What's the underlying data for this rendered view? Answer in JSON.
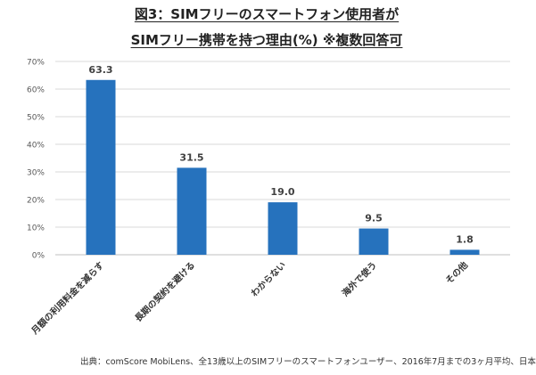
{
  "title_line1": "図3：SIMフリーのスマートフォン使用者が",
  "title_line2": "SIMフリー携帯を持つ理由(%) ※複数回答可",
  "source": "出典：comScore MobiLens、全13歳以上のSIMフリーのスマートフォンユーザー、2016年7月までの3ヶ月平均、日本",
  "chart_data": {
    "type": "bar",
    "categories": [
      "月額の利用料金を減らす",
      "長期の契約を避ける",
      "わからない",
      "海外で使う",
      "その他"
    ],
    "values": [
      63.3,
      31.5,
      19.0,
      9.5,
      1.8
    ],
    "value_labels": [
      "63.3",
      "31.5",
      "19.0",
      "9.5",
      "1.8"
    ],
    "ylim": [
      0,
      70
    ],
    "yticks": [
      0,
      10,
      20,
      30,
      40,
      50,
      60,
      70
    ],
    "ytick_labels": [
      "0%",
      "10%",
      "20%",
      "30%",
      "40%",
      "50%",
      "60%",
      "70%"
    ],
    "grid": true,
    "bar_color": "#2672BD",
    "grid_color": "#D9D9D9"
  }
}
